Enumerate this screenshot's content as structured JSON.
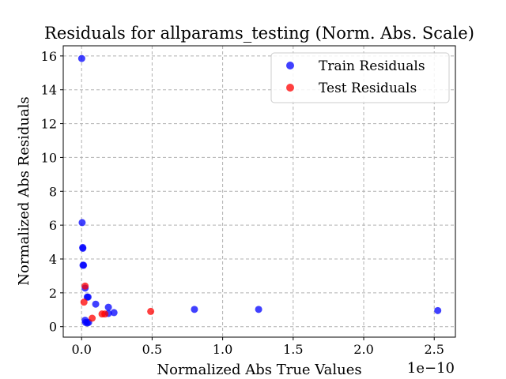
{
  "chart_data": {
    "type": "scatter",
    "title": "Residuals for allparams_testing (Norm. Abs. Scale)",
    "xlabel": "Normalized Abs True Values",
    "ylabel": "Normalized Abs Residuals",
    "x_scale_label": "1e−10",
    "xlim": [
      -0.13,
      2.65
    ],
    "ylim": [
      -0.62,
      16.6
    ],
    "x_ticks": [
      0.0,
      0.5,
      1.0,
      1.5,
      2.0,
      2.5
    ],
    "x_tick_labels": [
      "0.0",
      "0.5",
      "1.0",
      "1.5",
      "2.0",
      "2.5"
    ],
    "y_ticks": [
      0,
      2,
      4,
      6,
      8,
      10,
      12,
      14,
      16
    ],
    "y_tick_labels": [
      "0",
      "2",
      "4",
      "6",
      "8",
      "10",
      "12",
      "14",
      "16"
    ],
    "grid": true,
    "legend_position": "top-right",
    "series": [
      {
        "name": "Train Residuals",
        "color": "#0000ff",
        "points": [
          [
            0.001,
            15.85
          ],
          [
            0.004,
            6.15
          ],
          [
            0.008,
            4.68
          ],
          [
            0.009,
            4.63
          ],
          [
            0.01,
            3.63
          ],
          [
            0.014,
            3.63
          ],
          [
            0.025,
            2.28
          ],
          [
            0.04,
            1.75
          ],
          [
            0.046,
            1.75
          ],
          [
            0.1,
            1.33
          ],
          [
            0.19,
            1.15
          ],
          [
            0.23,
            0.83
          ],
          [
            0.19,
            0.78
          ],
          [
            0.025,
            0.38
          ],
          [
            0.028,
            0.25
          ],
          [
            0.04,
            0.22
          ],
          [
            0.05,
            0.25
          ],
          [
            0.8,
            1.02
          ],
          [
            1.255,
            1.02
          ],
          [
            2.525,
            0.95
          ]
        ]
      },
      {
        "name": "Test Residuals",
        "color": "#ff0000",
        "points": [
          [
            0.025,
            2.4
          ],
          [
            0.017,
            1.45
          ],
          [
            0.075,
            0.5
          ],
          [
            0.145,
            0.75
          ],
          [
            0.165,
            0.75
          ],
          [
            0.49,
            0.9
          ]
        ]
      }
    ]
  }
}
